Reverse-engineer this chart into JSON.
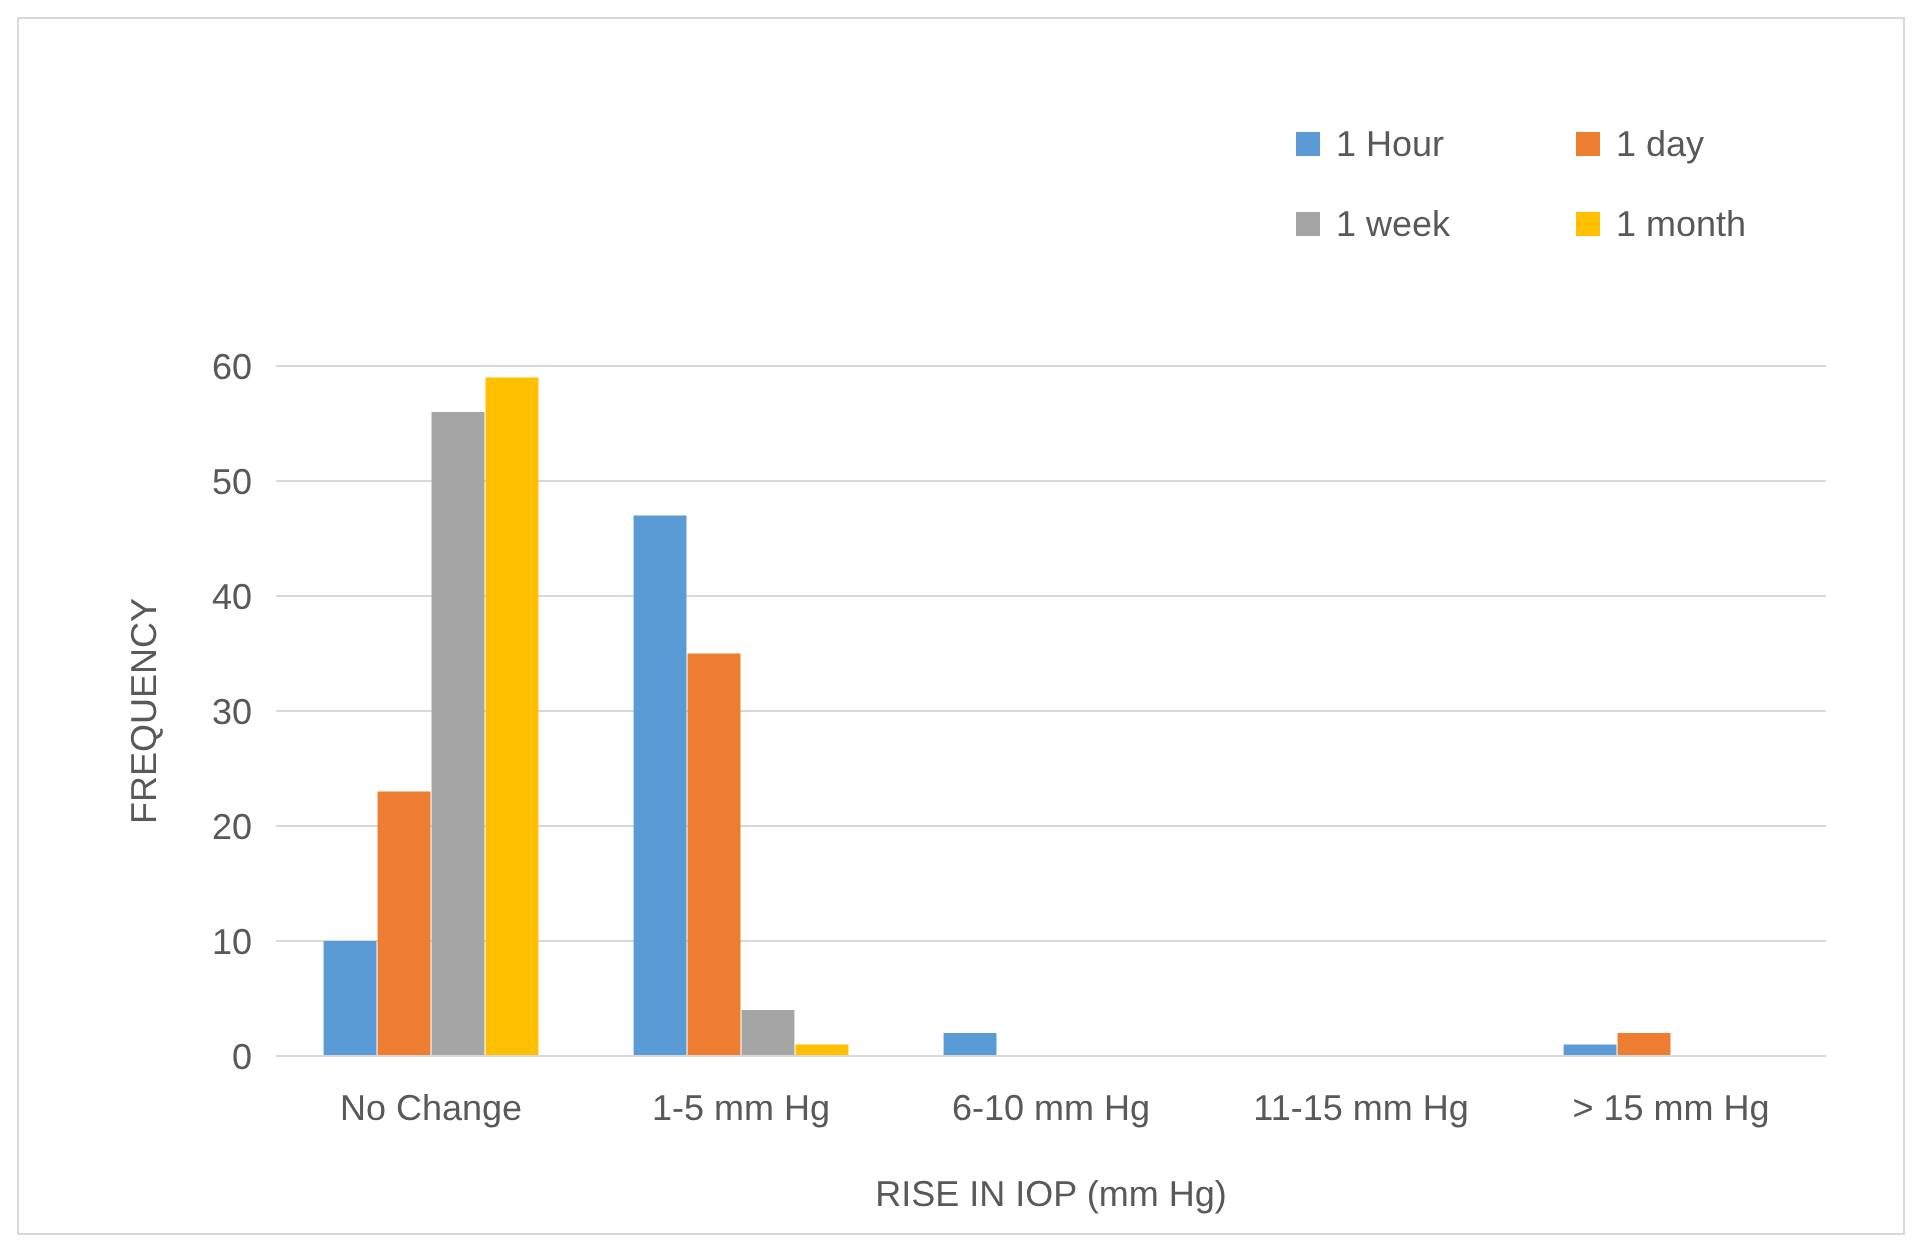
{
  "chart_data": {
    "type": "bar",
    "xlabel": "RISE IN IOP (mm Hg)",
    "ylabel": "FREQUENCY",
    "categories": [
      "No Change",
      "1-5 mm Hg",
      "6-10 mm Hg",
      "11-15 mm Hg",
      "> 15 mm Hg"
    ],
    "series": [
      {
        "name": "1 Hour",
        "color": "#5b9bd5",
        "values": [
          10,
          47,
          2,
          0,
          1
        ]
      },
      {
        "name": "1 day",
        "color": "#ed7d31",
        "values": [
          23,
          35,
          0,
          0,
          2
        ]
      },
      {
        "name": "1 week",
        "color": "#a5a5a5",
        "values": [
          56,
          4,
          0,
          0,
          0
        ]
      },
      {
        "name": "1 month",
        "color": "#ffc000",
        "values": [
          59,
          1,
          0,
          0,
          0
        ]
      }
    ],
    "ylim": [
      0,
      60
    ],
    "yticks": [
      0,
      10,
      20,
      30,
      40,
      50,
      60
    ],
    "grid": "y",
    "legend": "top right"
  }
}
